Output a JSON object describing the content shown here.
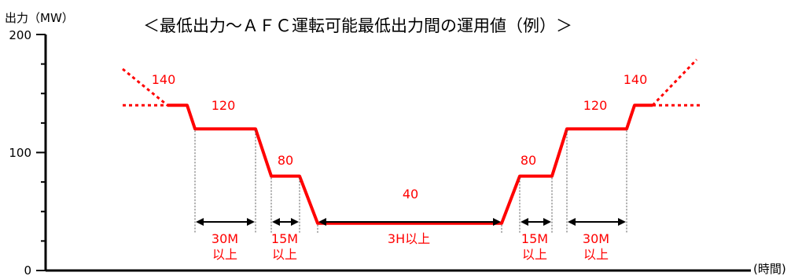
{
  "chart_data": {
    "type": "line",
    "title": "＜最低出力～ＡＦＣ運転可能最低出力間の運用値（例）＞",
    "ylabel": "出力（MW）",
    "xlabel": "(時間)",
    "ylim": [
      0,
      200
    ],
    "y_ticks": [
      "0",
      "100",
      "200"
    ],
    "series": [
      {
        "points": [
          {
            "label": "140",
            "value": 140
          },
          {
            "label": "120",
            "value": 120
          },
          {
            "label": "80",
            "value": 80
          },
          {
            "label": "40",
            "value": 40
          },
          {
            "label": "80",
            "value": 80
          },
          {
            "label": "120",
            "value": 120
          },
          {
            "label": "140",
            "value": 140
          }
        ]
      }
    ],
    "durations": [
      {
        "line1": "30M",
        "line2": "以上"
      },
      {
        "line1": "15M",
        "line2": "以上"
      },
      {
        "line1": "3H以上",
        "line2": ""
      },
      {
        "line1": "15M",
        "line2": "以上"
      },
      {
        "line1": "30M",
        "line2": "以上"
      }
    ],
    "colors": {
      "series": "#ff0000",
      "axis": "#000000",
      "guide": "#555555"
    }
  }
}
